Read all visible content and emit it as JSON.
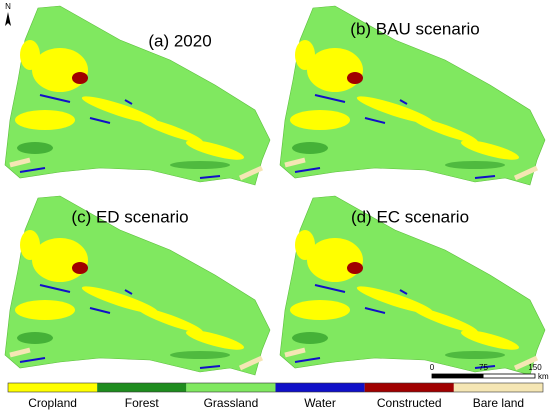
{
  "north": "N",
  "panels": [
    {
      "title": "(a) 2020"
    },
    {
      "title": "(b) BAU scenario"
    },
    {
      "title": "(c) ED scenario"
    },
    {
      "title": "(d) EC scenario"
    }
  ],
  "legend": [
    {
      "label": "Cropland",
      "color": "#ffff00"
    },
    {
      "label": "Forest",
      "color": "#1e8c1e"
    },
    {
      "label": "Grassland",
      "color": "#80e860"
    },
    {
      "label": "Water",
      "color": "#1010c8"
    },
    {
      "label": "Constructed",
      "color": "#a00000"
    },
    {
      "label": "Bare land",
      "color": "#f5e6b4"
    }
  ],
  "scale_bar": {
    "ticks": [
      "0",
      "75",
      "150"
    ],
    "unit": "km"
  }
}
